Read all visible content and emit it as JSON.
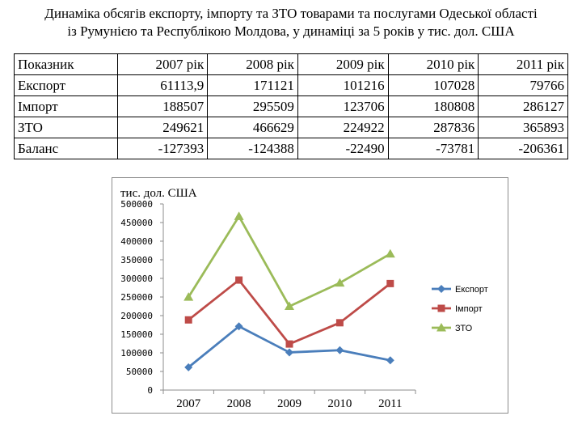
{
  "title_line1": "Динаміка обсягів експорту, імпорту та ЗТО товарами та послугами Одеської області",
  "title_line2": "із Румунією та Республікою Молдова, у динаміці за 5 років у тис. дол. США",
  "table": {
    "headers": [
      "Показник",
      "2007 рік",
      "2008 рік",
      "2009 рік",
      "2010 рік",
      "2011 рік"
    ],
    "rows": [
      [
        "Експорт",
        "61113,9",
        "171121",
        "101216",
        "107028",
        "79766"
      ],
      [
        "Імпорт",
        "188507",
        "295509",
        "123706",
        "180808",
        "286127"
      ],
      [
        "ЗТО",
        "249621",
        "466629",
        "224922",
        "287836",
        "365893"
      ],
      [
        "Баланс",
        "-127393",
        "-124388",
        "-22490",
        "-73781",
        "-206361"
      ]
    ]
  },
  "chart_data": {
    "type": "line",
    "title": "тис. дол. США",
    "categories": [
      "2007",
      "2008",
      "2009",
      "2010",
      "2011"
    ],
    "ylim": [
      0,
      500000
    ],
    "yticks": [
      "0",
      "50000",
      "100000",
      "150000",
      "200000",
      "250000",
      "300000",
      "350000",
      "400000",
      "450000",
      "500000"
    ],
    "legend_position": "right",
    "grid": false,
    "series": [
      {
        "name": "Експорт",
        "values": [
          61113.9,
          171121,
          101216,
          107028,
          79766
        ],
        "color": "#4a7ebb",
        "marker": "diamond"
      },
      {
        "name": "Імпорт",
        "values": [
          188507,
          295509,
          123706,
          180808,
          286127
        ],
        "color": "#be4b48",
        "marker": "square"
      },
      {
        "name": "ЗТО",
        "values": [
          249621,
          466629,
          224922,
          287836,
          365893
        ],
        "color": "#9bbb59",
        "marker": "triangle"
      }
    ]
  }
}
